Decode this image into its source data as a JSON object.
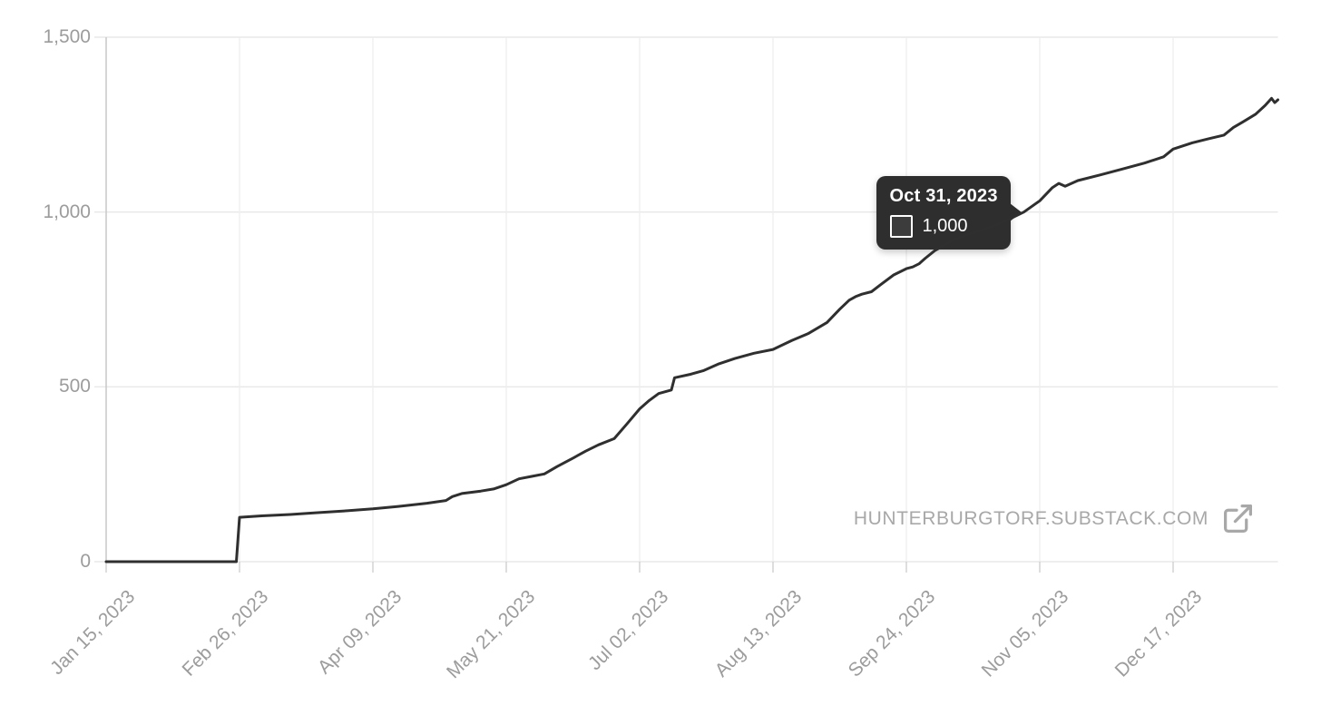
{
  "watermark": {
    "text": "HUNTERBURGTORF.SUBSTACK.COM"
  },
  "tooltip": {
    "date_label": "Oct 31, 2023",
    "value_label": "1,000",
    "point": {
      "date": "2023-10-31",
      "value": 1000
    },
    "swatch_color": "#3c3c3c"
  },
  "colors": {
    "line": "#2f2f2f",
    "grid_horizontal": "#e8e8e8",
    "grid_vertical": "#ededed",
    "axis_line": "#c7c7c7",
    "tick_stub": "#cfcfcf",
    "axis_text": "#9c9c9c",
    "tooltip_bg": "#2e2e2e",
    "watermark_text": "#a8a8a8"
  },
  "chart_data": {
    "type": "line",
    "title": "",
    "xlabel": "",
    "ylabel": "",
    "grid": true,
    "x_domain": [
      "2023-01-15",
      "2024-01-19"
    ],
    "y_domain": [
      0,
      1500
    ],
    "y_ticks": [
      {
        "value": 0,
        "label": "0"
      },
      {
        "value": 500,
        "label": "500"
      },
      {
        "value": 1000,
        "label": "1,000"
      },
      {
        "value": 1500,
        "label": "1,500"
      }
    ],
    "x_ticks": [
      {
        "date": "2023-01-15",
        "label": "Jan 15, 2023"
      },
      {
        "date": "2023-02-26",
        "label": "Feb 26, 2023"
      },
      {
        "date": "2023-04-09",
        "label": "Apr 09, 2023"
      },
      {
        "date": "2023-05-21",
        "label": "May 21, 2023"
      },
      {
        "date": "2023-07-02",
        "label": "Jul 02, 2023"
      },
      {
        "date": "2023-08-13",
        "label": "Aug 13, 2023"
      },
      {
        "date": "2023-09-24",
        "label": "Sep 24, 2023"
      },
      {
        "date": "2023-11-05",
        "label": "Nov 05, 2023"
      },
      {
        "date": "2023-12-17",
        "label": "Dec 17, 2023"
      }
    ],
    "series": [
      {
        "color": "#2f2f2f",
        "points": [
          [
            "2023-01-15",
            0
          ],
          [
            "2023-02-25",
            0
          ],
          [
            "2023-02-26",
            127
          ],
          [
            "2023-03-05",
            131
          ],
          [
            "2023-03-14",
            135
          ],
          [
            "2023-03-22",
            140
          ],
          [
            "2023-03-31",
            145
          ],
          [
            "2023-04-09",
            151
          ],
          [
            "2023-04-17",
            158
          ],
          [
            "2023-04-26",
            167
          ],
          [
            "2023-05-02",
            175
          ],
          [
            "2023-05-04",
            186
          ],
          [
            "2023-05-07",
            195
          ],
          [
            "2023-05-13",
            202
          ],
          [
            "2023-05-17",
            208
          ],
          [
            "2023-05-21",
            220
          ],
          [
            "2023-05-25",
            237
          ],
          [
            "2023-05-29",
            244
          ],
          [
            "2023-06-02",
            251
          ],
          [
            "2023-06-06",
            272
          ],
          [
            "2023-06-11",
            296
          ],
          [
            "2023-06-15",
            316
          ],
          [
            "2023-06-19",
            334
          ],
          [
            "2023-06-24",
            352
          ],
          [
            "2023-06-28",
            394
          ],
          [
            "2023-07-02",
            437
          ],
          [
            "2023-07-05",
            461
          ],
          [
            "2023-07-08",
            481
          ],
          [
            "2023-07-12",
            491
          ],
          [
            "2023-07-13",
            526
          ],
          [
            "2023-07-18",
            536
          ],
          [
            "2023-07-22",
            546
          ],
          [
            "2023-07-27",
            566
          ],
          [
            "2023-08-01",
            581
          ],
          [
            "2023-08-07",
            596
          ],
          [
            "2023-08-13",
            607
          ],
          [
            "2023-08-19",
            633
          ],
          [
            "2023-08-24",
            652
          ],
          [
            "2023-08-30",
            684
          ],
          [
            "2023-09-03",
            722
          ],
          [
            "2023-09-06",
            748
          ],
          [
            "2023-09-08",
            758
          ],
          [
            "2023-09-10",
            765
          ],
          [
            "2023-09-13",
            772
          ],
          [
            "2023-09-16",
            793
          ],
          [
            "2023-09-20",
            820
          ],
          [
            "2023-09-24",
            838
          ],
          [
            "2023-09-26",
            843
          ],
          [
            "2023-09-28",
            852
          ],
          [
            "2023-09-30",
            868
          ],
          [
            "2023-10-03",
            890
          ],
          [
            "2023-10-09",
            921
          ],
          [
            "2023-10-15",
            941
          ],
          [
            "2023-10-21",
            959
          ],
          [
            "2023-10-26",
            978
          ],
          [
            "2023-10-31",
            1000
          ],
          [
            "2023-11-05",
            1032
          ],
          [
            "2023-11-09",
            1070
          ],
          [
            "2023-11-11",
            1082
          ],
          [
            "2023-11-13",
            1074
          ],
          [
            "2023-11-17",
            1090
          ],
          [
            "2023-11-24",
            1106
          ],
          [
            "2023-12-01",
            1123
          ],
          [
            "2023-12-08",
            1140
          ],
          [
            "2023-12-14",
            1158
          ],
          [
            "2023-12-17",
            1180
          ],
          [
            "2023-12-23",
            1198
          ],
          [
            "2023-12-28",
            1209
          ],
          [
            "2024-01-02",
            1220
          ],
          [
            "2024-01-05",
            1242
          ],
          [
            "2024-01-08",
            1258
          ],
          [
            "2024-01-12",
            1280
          ],
          [
            "2024-01-15",
            1305
          ],
          [
            "2024-01-17",
            1325
          ],
          [
            "2024-01-18",
            1313
          ],
          [
            "2024-01-19",
            1321
          ]
        ]
      }
    ],
    "legend_position": "none",
    "annotations": [
      {
        "type": "tooltip",
        "date": "Oct 31, 2023",
        "value": "1,000"
      }
    ]
  }
}
